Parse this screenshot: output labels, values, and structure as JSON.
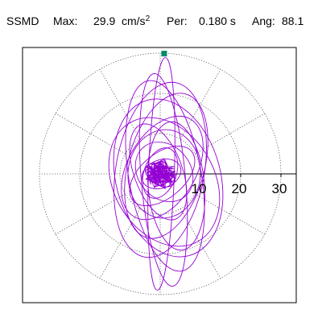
{
  "header": {
    "station": "SSMD",
    "max_label": "Max:",
    "max_value": "29.9",
    "max_unit": "cm/s",
    "max_unit_exp": "2",
    "per_label": "Per:",
    "per_value": "0.180 s",
    "ang_label": "Ang:",
    "ang_value": "88.1"
  },
  "colors": {
    "trace": "#9400D3",
    "peak_marker": "#008B6B",
    "grid": "#555555",
    "axis": "#000000",
    "frame": "#000000"
  },
  "chart_data": {
    "type": "polar-hodogram",
    "radial_units": "cm/s^2",
    "radial_ticks": [
      10,
      20,
      30
    ],
    "radial_tick_labels": [
      "10",
      "20",
      "30"
    ],
    "rmax": 32,
    "grid_circles": [
      10,
      20,
      30
    ],
    "spokes_every_deg": 30,
    "grid_style": "dotted",
    "peak": {
      "amplitude": 29.9,
      "angle_deg": 88.1
    },
    "trace_loops": [
      {
        "semi_major": 28.9,
        "semi_minor": 3.2,
        "tilt_deg": 88,
        "cx": 0.3,
        "cy": 0.0
      },
      {
        "semi_major": 26.5,
        "semi_minor": 5.5,
        "tilt_deg": 95,
        "cx": 0.8,
        "cy": -1.5
      },
      {
        "semi_major": 24.0,
        "semi_minor": 9.0,
        "tilt_deg": 100,
        "cx": 1.2,
        "cy": -0.5
      },
      {
        "semi_major": 22.0,
        "semi_minor": 11.0,
        "tilt_deg": 80,
        "cx": 0.0,
        "cy": 1.0
      },
      {
        "semi_major": 20.0,
        "semi_minor": 13.0,
        "tilt_deg": 105,
        "cx": 2.0,
        "cy": -1.0
      },
      {
        "semi_major": 18.5,
        "semi_minor": 9.5,
        "tilt_deg": 75,
        "cx": 1.5,
        "cy": 2.0
      },
      {
        "semi_major": 17.0,
        "semi_minor": 12.5,
        "tilt_deg": 120,
        "cx": 1.0,
        "cy": -2.0
      },
      {
        "semi_major": 16.0,
        "semi_minor": 7.0,
        "tilt_deg": 95,
        "cx": 4.0,
        "cy": -3.0
      },
      {
        "semi_major": 14.0,
        "semi_minor": 8.5,
        "tilt_deg": 60,
        "cx": 0.5,
        "cy": 1.5
      },
      {
        "semi_major": 12.5,
        "semi_minor": 6.0,
        "tilt_deg": 110,
        "cx": -0.5,
        "cy": 0.5
      },
      {
        "semi_major": 11.0,
        "semi_minor": 9.0,
        "tilt_deg": 85,
        "cx": 1.0,
        "cy": 0.0
      },
      {
        "semi_major": 9.5,
        "semi_minor": 5.5,
        "tilt_deg": 40,
        "cx": 0.5,
        "cy": -0.5
      },
      {
        "semi_major": 8.0,
        "semi_minor": 6.5,
        "tilt_deg": 130,
        "cx": 1.0,
        "cy": 0.5
      },
      {
        "semi_major": 6.5,
        "semi_minor": 4.0,
        "tilt_deg": 70,
        "cx": 0.0,
        "cy": 0.2
      },
      {
        "semi_major": 5.0,
        "semi_minor": 3.5,
        "tilt_deg": 20,
        "cx": 0.3,
        "cy": 0.0
      },
      {
        "semi_major": 4.0,
        "semi_minor": 2.5,
        "tilt_deg": 150,
        "cx": 0.0,
        "cy": -0.3
      },
      {
        "semi_major": 3.0,
        "semi_minor": 2.0,
        "tilt_deg": 90,
        "cx": 0.2,
        "cy": 0.1
      },
      {
        "semi_major": 2.0,
        "semi_minor": 1.2,
        "tilt_deg": 45,
        "cx": 0.0,
        "cy": 0.0
      }
    ]
  }
}
